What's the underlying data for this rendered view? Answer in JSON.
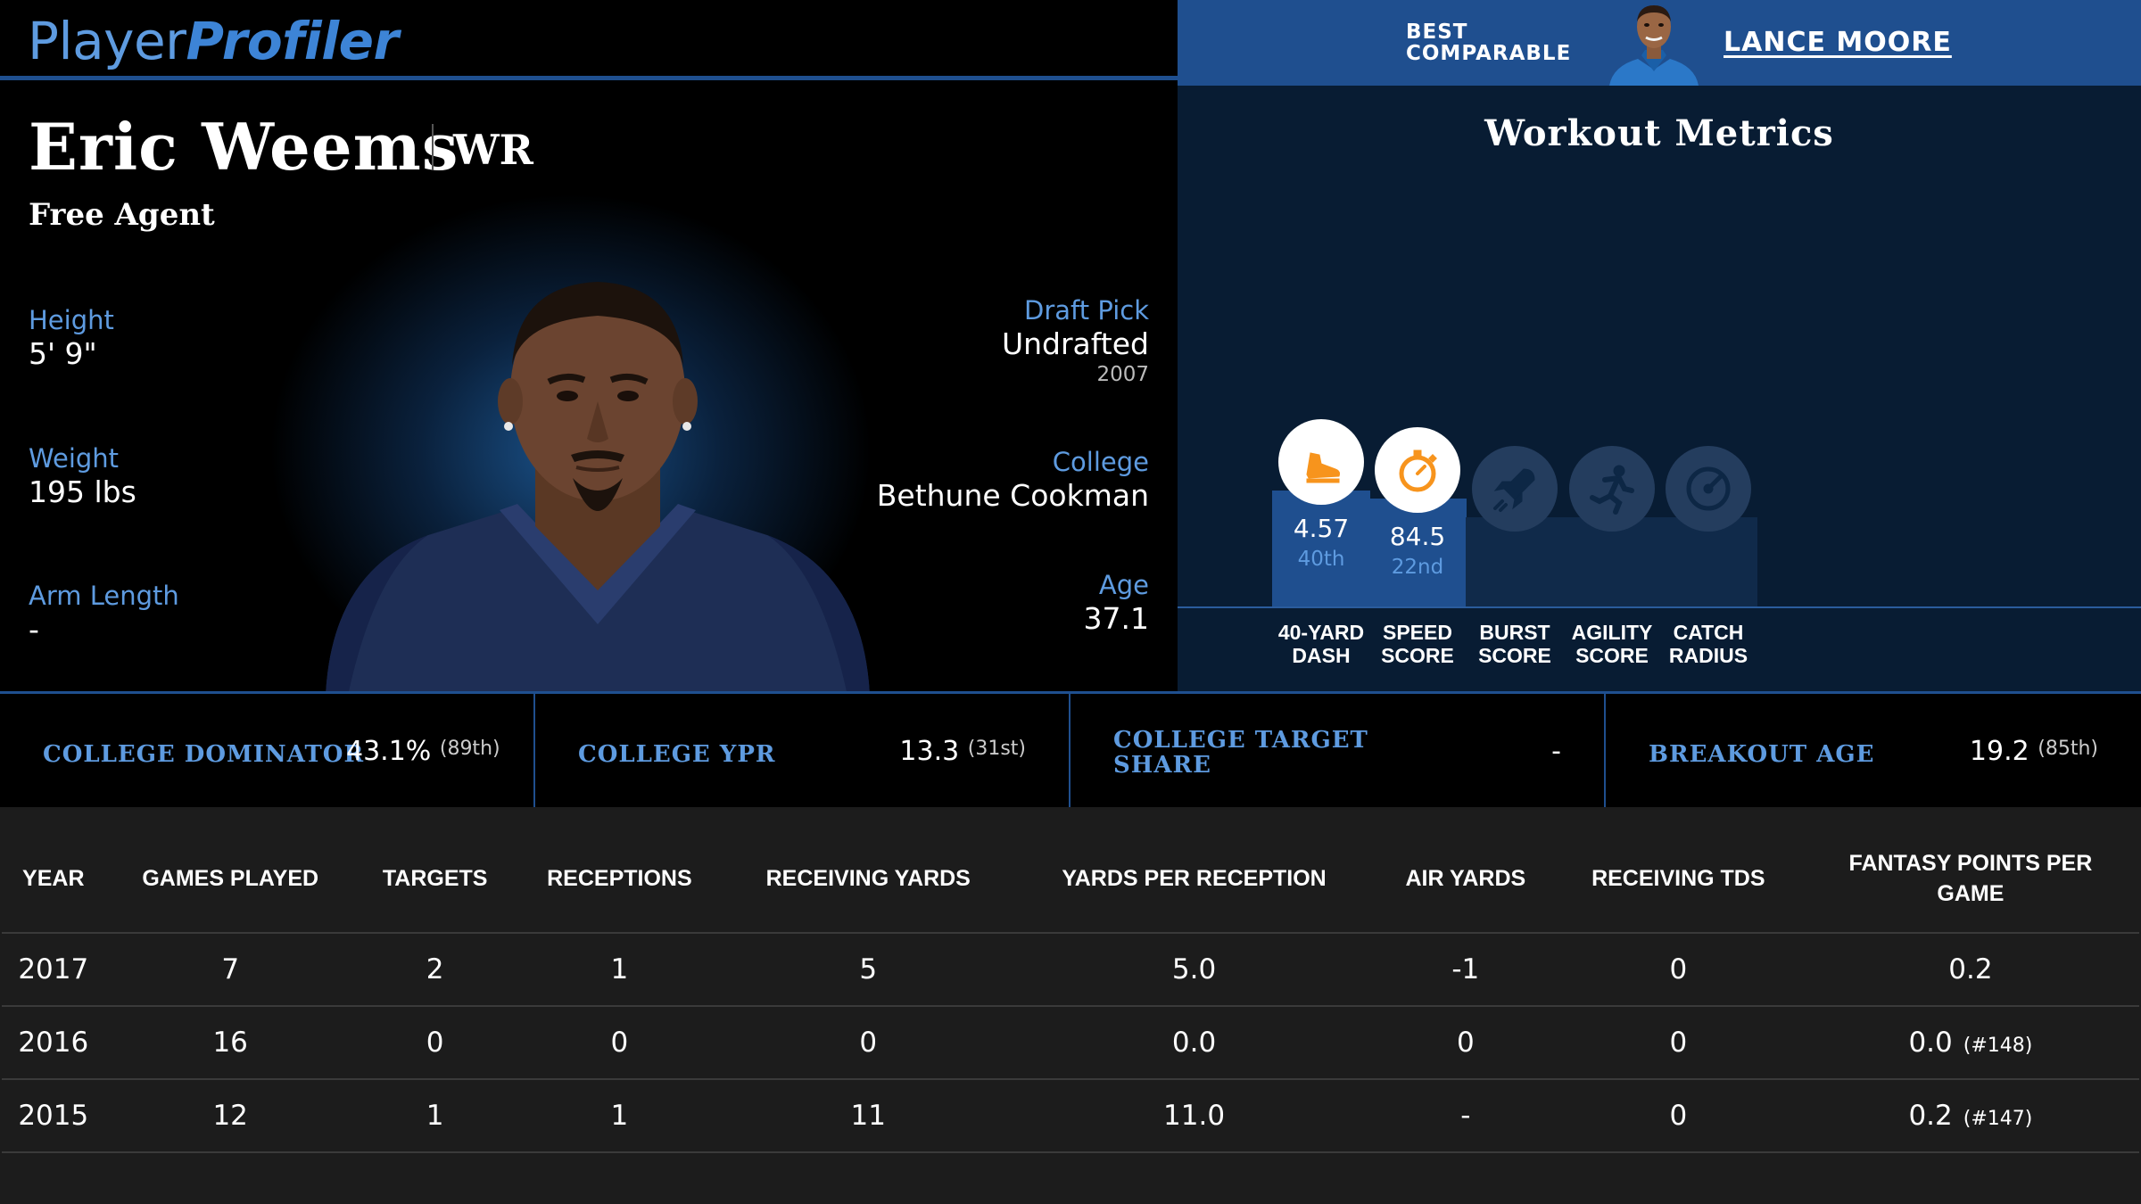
{
  "brand": {
    "logo_part1": "Player",
    "logo_part2": "Profiler"
  },
  "comparable": {
    "label_line1": "BEST",
    "label_line2": "COMPARABLE",
    "name": "LANCE MOORE"
  },
  "player": {
    "name": "Eric Weems",
    "position": "WR",
    "team": "Free Agent",
    "height_label": "Height",
    "height": "5' 9\"",
    "weight_label": "Weight",
    "weight": "195 lbs",
    "arm_label": "Arm Length",
    "arm": "-",
    "draft_label": "Draft Pick",
    "draft": "Undrafted",
    "draft_year": "2007",
    "college_label": "College",
    "college": "Bethune Cookman",
    "age_label": "Age",
    "age": "37.1"
  },
  "workout": {
    "title": "Workout Metrics",
    "metrics": [
      {
        "label1": "40-YARD",
        "label2": "DASH",
        "value": "4.57",
        "rank": "40th",
        "percentile": 40,
        "active": true,
        "icon": "shoe-icon"
      },
      {
        "label1": "SPEED",
        "label2": "SCORE",
        "value": "84.5",
        "rank": "22nd",
        "percentile": 22,
        "active": true,
        "icon": "stopwatch-icon"
      },
      {
        "label1": "BURST",
        "label2": "SCORE",
        "value": "",
        "rank": "",
        "percentile": 0,
        "active": false,
        "icon": "rocket-icon"
      },
      {
        "label1": "AGILITY",
        "label2": "SCORE",
        "value": "",
        "rank": "",
        "percentile": 0,
        "active": false,
        "icon": "runner-icon"
      },
      {
        "label1": "CATCH",
        "label2": "RADIUS",
        "value": "",
        "rank": "",
        "percentile": 0,
        "active": false,
        "icon": "target-icon"
      }
    ],
    "colors": {
      "active_circle": "#ffffff",
      "inactive_circle": "#243d5e",
      "icon_active": "#f7941d",
      "icon_inactive": "#0d2745",
      "bar_active": "#1f4f8f",
      "bar_inactive": "#102a4a"
    }
  },
  "college_stats": [
    {
      "label_line1": "COLLEGE DOMINATOR",
      "label_line2": "",
      "value": "43.1%",
      "rank": "(89th)"
    },
    {
      "label_line1": "COLLEGE YPR",
      "label_line2": "",
      "value": "13.3",
      "rank": "(31st)"
    },
    {
      "label_line1": "COLLEGE TARGET",
      "label_line2": "SHARE",
      "value": "-",
      "rank": ""
    },
    {
      "label_line1": "BREAKOUT AGE",
      "label_line2": "",
      "value": "19.2",
      "rank": "(85th)"
    }
  ],
  "stats_table": {
    "headers": [
      [
        "YEAR",
        ""
      ],
      [
        "GAMES PLAYED",
        ""
      ],
      [
        "TARGETS",
        ""
      ],
      [
        "RECEPTIONS",
        ""
      ],
      [
        "RECEIVING YARDS",
        ""
      ],
      [
        "YARDS PER RECEPTION",
        ""
      ],
      [
        "AIR YARDS",
        ""
      ],
      [
        "RECEIVING TDS",
        ""
      ],
      [
        "FANTASY POINTS PER",
        "GAME"
      ]
    ],
    "rows": [
      {
        "year": "2017",
        "games": "7",
        "targets": "2",
        "receptions": "1",
        "yards": "5",
        "ypr": "5.0",
        "air_yards": "-1",
        "tds": "0",
        "fppg": "0.2",
        "fppg_rank": ""
      },
      {
        "year": "2016",
        "games": "16",
        "targets": "0",
        "receptions": "0",
        "yards": "0",
        "ypr": "0.0",
        "air_yards": "0",
        "tds": "0",
        "fppg": "0.0",
        "fppg_rank": "(#148)"
      },
      {
        "year": "2015",
        "games": "12",
        "targets": "1",
        "receptions": "1",
        "yards": "11",
        "ypr": "11.0",
        "air_yards": "-",
        "tds": "0",
        "fppg": "0.2",
        "fppg_rank": "(#147)"
      }
    ]
  }
}
